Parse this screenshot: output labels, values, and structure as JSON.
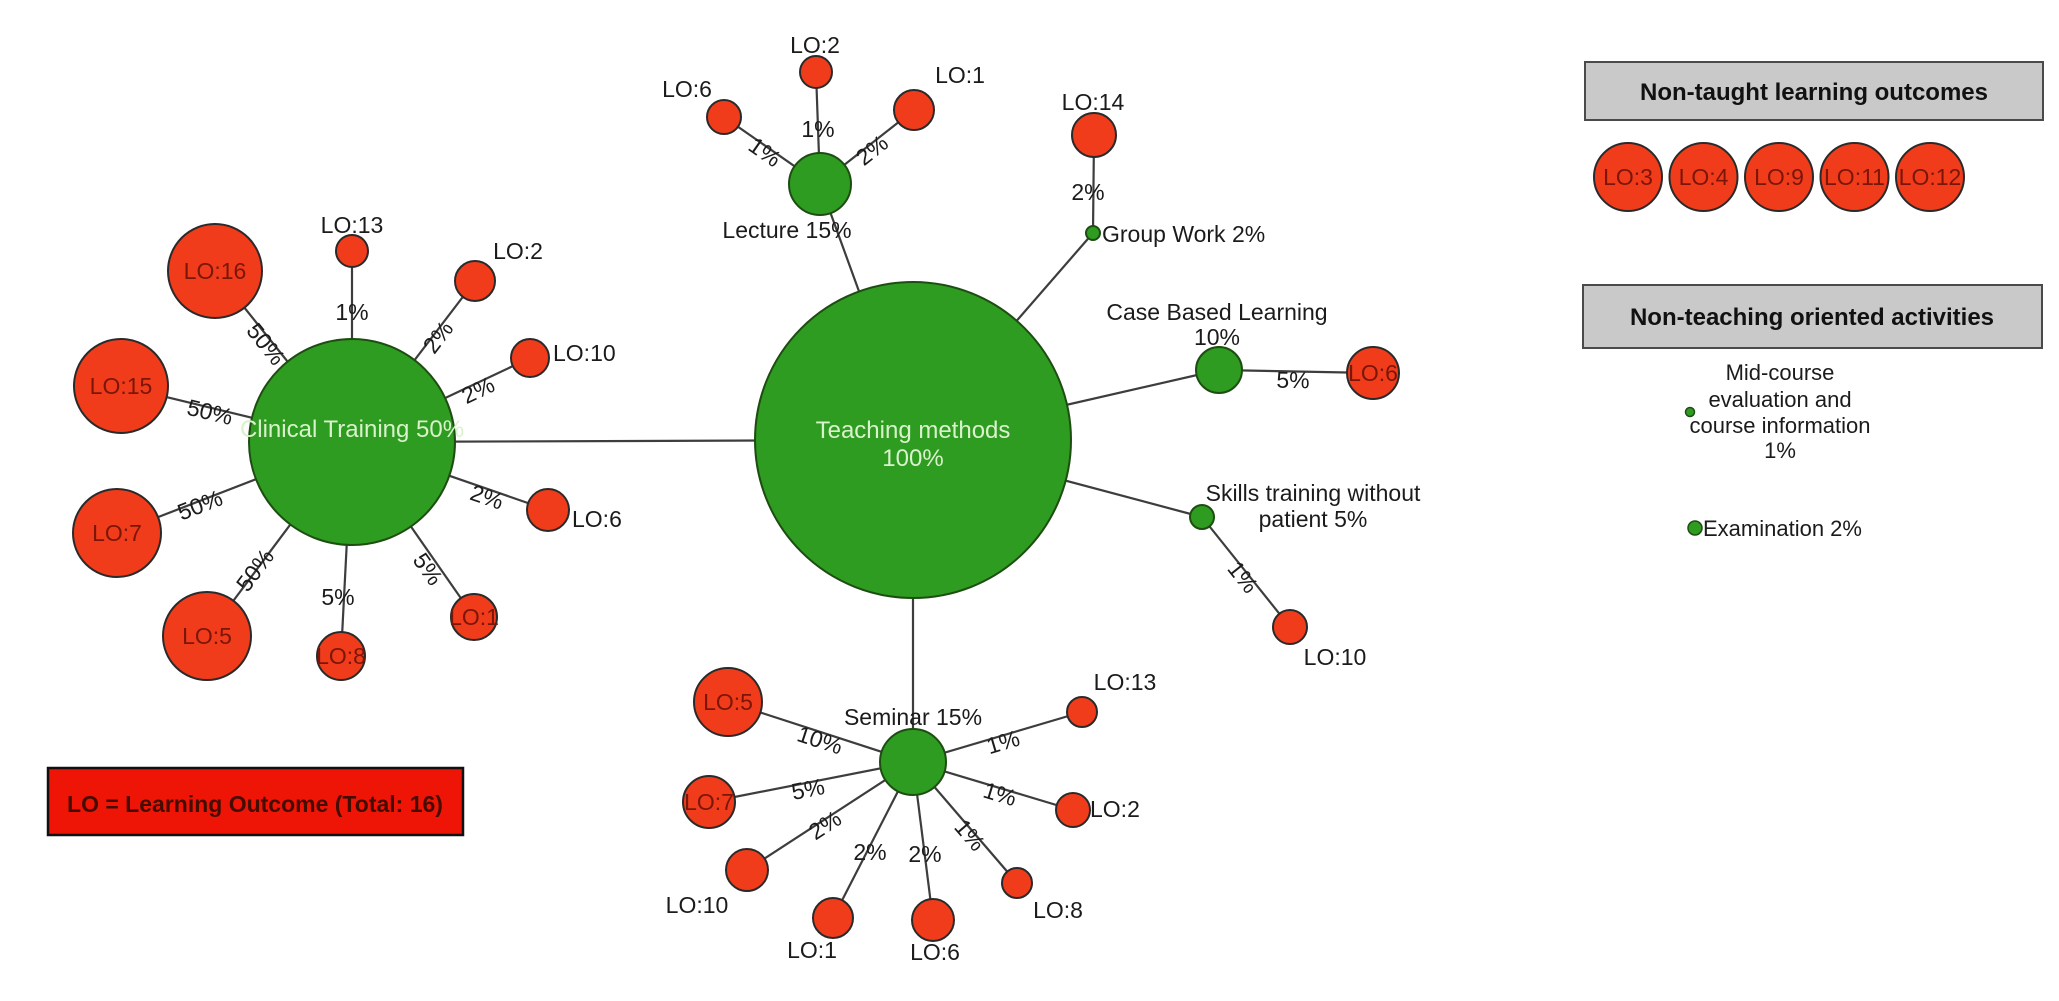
{
  "colors": {
    "node_green": "#2e9b21",
    "node_red": "#f13c1c",
    "inside_label": "#7a1607",
    "hub_label": "#d9f2cb",
    "edge_line": "#3d3d3d",
    "header_bg": "#c9c9c9",
    "key_bg": "#ee1507",
    "key_text": "#450d00"
  },
  "hub": {
    "line1": "Teaching methods",
    "line2": "100%"
  },
  "branches": {
    "clinical": {
      "label": "Clinical Training 50%"
    },
    "lecture": {
      "label": "Lecture 15%"
    },
    "seminar": {
      "label": "Seminar 15%"
    },
    "cbl": {
      "line1": "Case Based Learning",
      "line2": "10%"
    },
    "skills": {
      "line1": "Skills training without",
      "line2": "patient 5%"
    },
    "groupwork": {
      "label": "Group Work 2%"
    }
  },
  "outcomes": [
    {
      "id": "cl16",
      "branch": "clinical",
      "label": "LO:16",
      "pct": "50%"
    },
    {
      "id": "cl13",
      "branch": "clinical",
      "label": "LO:13",
      "pct": "1%"
    },
    {
      "id": "cl2",
      "branch": "clinical",
      "label": "LO:2",
      "pct": "2%"
    },
    {
      "id": "cl15",
      "branch": "clinical",
      "label": "LO:15",
      "pct": "50%"
    },
    {
      "id": "cl10",
      "branch": "clinical",
      "label": "LO:10",
      "pct": "2%"
    },
    {
      "id": "cl6",
      "branch": "clinical",
      "label": "LO:6",
      "pct": "2%"
    },
    {
      "id": "cl7",
      "branch": "clinical",
      "label": "LO:7",
      "pct": "50%"
    },
    {
      "id": "cl5",
      "branch": "clinical",
      "label": "LO:5",
      "pct": "50%"
    },
    {
      "id": "cl8",
      "branch": "clinical",
      "label": "LO:8",
      "pct": "5%"
    },
    {
      "id": "cl1",
      "branch": "clinical",
      "label": "LO:1",
      "pct": "5%"
    },
    {
      "id": "lec6",
      "branch": "lecture",
      "label": "LO:6",
      "pct": "1%"
    },
    {
      "id": "lec2",
      "branch": "lecture",
      "label": "LO:2",
      "pct": "1%"
    },
    {
      "id": "lec1",
      "branch": "lecture",
      "label": "LO:1",
      "pct": "2%"
    },
    {
      "id": "gw14",
      "branch": "groupwork",
      "label": "LO:14",
      "pct": "2%"
    },
    {
      "id": "cbl6",
      "branch": "cbl",
      "label": "LO:6",
      "pct": "5%"
    },
    {
      "id": "sk10",
      "branch": "skills",
      "label": "LO:10",
      "pct": "1%"
    },
    {
      "id": "sem5",
      "branch": "seminar",
      "label": "LO:5",
      "pct": "10%"
    },
    {
      "id": "sem7",
      "branch": "seminar",
      "label": "LO:7",
      "pct": "5%"
    },
    {
      "id": "sem10",
      "branch": "seminar",
      "label": "LO:10",
      "pct": "2%"
    },
    {
      "id": "sem1",
      "branch": "seminar",
      "label": "LO:1",
      "pct": "2%"
    },
    {
      "id": "sem6",
      "branch": "seminar",
      "label": "LO:6",
      "pct": "2%"
    },
    {
      "id": "sem8",
      "branch": "seminar",
      "label": "LO:8",
      "pct": "1%"
    },
    {
      "id": "sem2",
      "branch": "seminar",
      "label": "LO:2",
      "pct": "1%"
    },
    {
      "id": "sem13",
      "branch": "seminar",
      "label": "LO:13",
      "pct": "1%"
    }
  ],
  "legend": {
    "non_taught": {
      "title": "Non-taught learning outcomes",
      "items": [
        "LO:3",
        "LO:4",
        "LO:9",
        "LO:11",
        "LO:12"
      ]
    },
    "non_teaching": {
      "title": "Non-teaching oriented activities",
      "midcourse_lines": [
        "Mid-course",
        "evaluation and",
        "course information",
        "1%"
      ],
      "examination": "Examination 2%"
    }
  },
  "key_box": {
    "label": "LO = Learning Outcome (Total: 16)"
  }
}
